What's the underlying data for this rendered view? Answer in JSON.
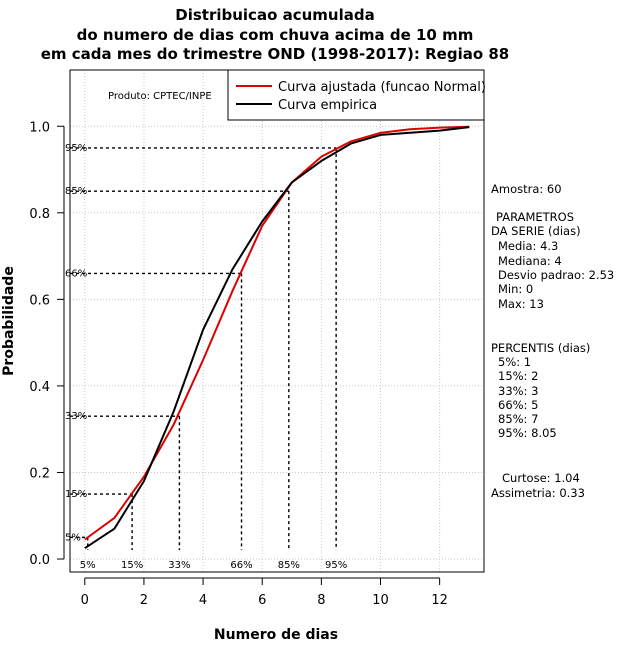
{
  "chart_data": {
    "type": "line",
    "title_lines": [
      "Distribuicao acumulada",
      "do numero de dias com chuva acima de 10 mm",
      "em cada mes do trimestre OND (1998-2017): Regiao 88"
    ],
    "xlabel": "Numero de dias",
    "ylabel": "Probabilidade",
    "xlim": [
      -0.5,
      13.5
    ],
    "ylim": [
      -0.03,
      1.13
    ],
    "x_ticks": [
      0,
      2,
      4,
      6,
      8,
      10,
      12
    ],
    "y_ticks": [
      0.0,
      0.2,
      0.4,
      0.6,
      0.8,
      1.0
    ],
    "y_tick_labels": [
      "0.0",
      "0.2",
      "0.4",
      "0.6",
      "0.8",
      "1.0"
    ],
    "grid": true,
    "credit": "Produto: CPTEC/INPE",
    "legend": {
      "position": "top-right",
      "entries": [
        {
          "label": "Curva ajustada (funcao Normal)",
          "color": "#dd0000"
        },
        {
          "label": "Curva empirica",
          "color": "#000000"
        }
      ]
    },
    "series": [
      {
        "name": "Curva ajustada (funcao Normal)",
        "color": "#dd0000",
        "x": [
          0,
          1,
          2,
          3,
          4,
          5,
          6,
          7,
          8,
          9,
          10,
          11,
          12,
          13
        ],
        "y": [
          0.045,
          0.095,
          0.19,
          0.31,
          0.46,
          0.62,
          0.77,
          0.87,
          0.93,
          0.965,
          0.985,
          0.993,
          0.997,
          0.999
        ]
      },
      {
        "name": "Curva empirica",
        "color": "#000000",
        "x": [
          0,
          1,
          2,
          3,
          4,
          5,
          6,
          7,
          8,
          9,
          10,
          11,
          12,
          13
        ],
        "y": [
          0.025,
          0.07,
          0.18,
          0.34,
          0.53,
          0.67,
          0.78,
          0.87,
          0.92,
          0.96,
          0.98,
          0.985,
          0.99,
          0.998
        ]
      }
    ],
    "percentile_markers": [
      {
        "label": "5%",
        "x": 0.1,
        "y": 0.05
      },
      {
        "label": "15%",
        "x": 1.6,
        "y": 0.15
      },
      {
        "label": "33%",
        "x": 3.2,
        "y": 0.33
      },
      {
        "label": "66%",
        "x": 5.3,
        "y": 0.66
      },
      {
        "label": "85%",
        "x": 6.9,
        "y": 0.85
      },
      {
        "label": "95%",
        "x": 8.5,
        "y": 0.95
      }
    ],
    "side_panel": {
      "amostra": "Amostra: 60",
      "param_title": "PARAMETROS",
      "param_subtitle": "DA SERIE (dias)",
      "params": [
        "Media: 4.3",
        "Mediana: 4",
        "Desvio padrao: 2.53",
        "Min: 0",
        "Max: 13"
      ],
      "perc_title": "PERCENTIS (dias)",
      "percentis": [
        "5%: 1",
        "15%: 2",
        "33%: 3",
        "66%: 5",
        "85%: 7",
        "95%: 8.05"
      ],
      "curtose": "Curtose: 1.04",
      "assimetria": "Assimetria: 0.33"
    }
  }
}
